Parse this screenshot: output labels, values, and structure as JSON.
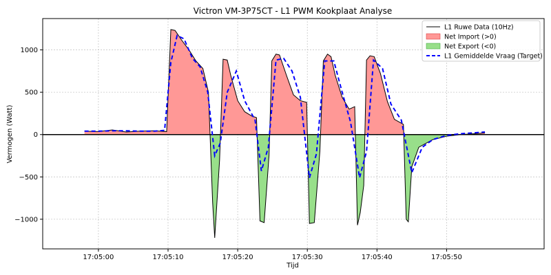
{
  "chart_data": {
    "type": "line",
    "title": "Victron VM-3P75CT - L1 PWM Kookplaat Analyse",
    "xlabel": "Tijd",
    "ylabel": "Vermogen (Watt)",
    "xlim": [
      "17:04:52",
      "17:06:04"
    ],
    "ylim": [
      -1350,
      1370
    ],
    "x_ticks": [
      "17:05:00",
      "17:05:10",
      "17:05:20",
      "17:05:30",
      "17:05:40",
      "17:05:50"
    ],
    "y_ticks": [
      -1000,
      -500,
      0,
      500,
      1000
    ],
    "grid": true,
    "legend_position": "top-right",
    "legend": [
      "L1 Ruwe Data (10Hz)",
      "Net Import (>0)",
      "Net Export (<0)",
      "L1 Gemiddelde Vraag (Target)"
    ],
    "colors": {
      "raw": "#000000",
      "import_fill": "#ff9896",
      "export_fill": "#98df8a",
      "target": "#0000ff"
    },
    "series": [
      {
        "name": "L1 Ruwe Data (10Hz)",
        "x": [
          "17:04:58",
          "17:05:00",
          "17:05:02",
          "17:05:04",
          "17:05:06",
          "17:05:08",
          "17:05:09.8",
          "17:05:10.4",
          "17:05:11",
          "17:05:12",
          "17:05:13",
          "17:05:14",
          "17:05:15",
          "17:05:15.8",
          "17:05:16.4",
          "17:05:16.7",
          "17:05:17.4",
          "17:05:17.9",
          "17:05:18.5",
          "17:05:19",
          "17:05:20",
          "17:05:21",
          "17:05:22",
          "17:05:22.7",
          "17:05:23.2",
          "17:05:23.8",
          "17:05:24.5",
          "17:05:24.9",
          "17:05:25.5",
          "17:05:26",
          "17:05:27",
          "17:05:28",
          "17:05:29",
          "17:05:29.9",
          "17:05:30.3",
          "17:05:31",
          "17:05:31.8",
          "17:05:32.3",
          "17:05:32.9",
          "17:05:33.4",
          "17:05:34",
          "17:05:35",
          "17:05:36",
          "17:05:36.8",
          "17:05:37.2",
          "17:05:37.6",
          "17:05:38.1",
          "17:05:38.5",
          "17:05:39",
          "17:05:39.6",
          "17:05:40.5",
          "17:05:41.5",
          "17:05:42.5",
          "17:05:43.8",
          "17:05:44.2",
          "17:05:44.5",
          "17:05:45",
          "17:05:46",
          "17:05:48",
          "17:05:50",
          "17:05:52",
          "17:05:54",
          "17:05:55.5"
        ],
        "values": [
          40,
          35,
          55,
          30,
          40,
          45,
          35,
          1240,
          1230,
          1110,
          1000,
          870,
          780,
          500,
          -800,
          -1220,
          -300,
          890,
          880,
          700,
          400,
          270,
          220,
          200,
          -1020,
          -1040,
          -250,
          870,
          950,
          940,
          700,
          470,
          400,
          380,
          -1050,
          -1040,
          -200,
          870,
          950,
          920,
          700,
          440,
          300,
          330,
          -1070,
          -920,
          -600,
          880,
          930,
          920,
          720,
          390,
          180,
          120,
          -1000,
          -1030,
          -380,
          -150,
          -60,
          -20,
          0,
          10,
          20
        ]
      },
      {
        "name": "L1 Gemiddelde Vraag (Target)",
        "x": [
          "17:04:58",
          "17:05:00",
          "17:05:02",
          "17:05:04",
          "17:05:06",
          "17:05:08",
          "17:05:09.5",
          "17:05:10.4",
          "17:05:11.3",
          "17:05:12.3",
          "17:05:13.5",
          "17:05:14.6",
          "17:05:15.7",
          "17:05:16.7",
          "17:05:17.5",
          "17:05:18.5",
          "17:05:19.8",
          "17:05:21",
          "17:05:22.5",
          "17:05:23.4",
          "17:05:24.4",
          "17:05:25.5",
          "17:05:26.6",
          "17:05:27.8",
          "17:05:29",
          "17:05:30.3",
          "17:05:31.3",
          "17:05:32.5",
          "17:05:33.8",
          "17:05:35",
          "17:05:36.2",
          "17:05:37.5",
          "17:05:38.5",
          "17:05:39.5",
          "17:05:40.8",
          "17:05:42",
          "17:05:43.5",
          "17:05:45",
          "17:05:46.5",
          "17:05:48",
          "17:05:50",
          "17:05:52",
          "17:05:55.5"
        ],
        "values": [
          40,
          40,
          45,
          45,
          40,
          40,
          50,
          850,
          1170,
          1130,
          900,
          800,
          500,
          -250,
          -100,
          500,
          750,
          400,
          170,
          -430,
          -150,
          880,
          900,
          750,
          440,
          -510,
          -230,
          870,
          870,
          500,
          150,
          -510,
          -200,
          880,
          780,
          360,
          170,
          -450,
          -150,
          -60,
          -10,
          10,
          30
        ]
      }
    ]
  }
}
